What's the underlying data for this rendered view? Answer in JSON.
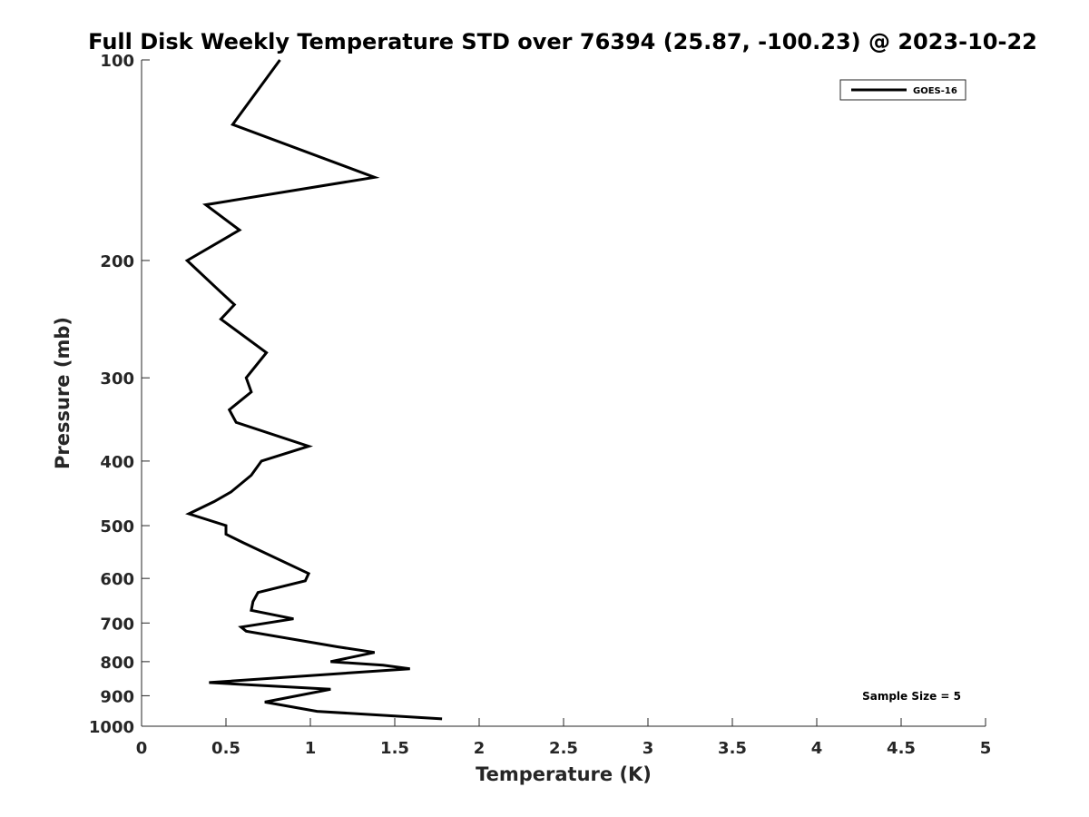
{
  "chart_data": {
    "type": "line",
    "title": "Full Disk Weekly Temperature STD over 76394 (25.87, -100.23) @ 2023-10-22",
    "xlabel": "Temperature (K)",
    "ylabel": "Pressure (mb)",
    "xlim": [
      0,
      5
    ],
    "ylim": [
      100,
      1000
    ],
    "yscale": "log",
    "y_reversed": true,
    "grid": false,
    "legend_position": "top-right",
    "x_ticks": [
      0,
      0.5,
      1,
      1.5,
      2,
      2.5,
      3,
      3.5,
      4,
      4.5,
      5
    ],
    "x_tick_labels": [
      "0",
      "0.5",
      "1",
      "1.5",
      "2",
      "2.5",
      "3",
      "3.5",
      "4",
      "4.5",
      "5"
    ],
    "y_ticks": [
      100,
      200,
      300,
      400,
      500,
      600,
      700,
      800,
      900,
      1000
    ],
    "y_tick_labels": [
      "100",
      "200",
      "300",
      "400",
      "500",
      "600",
      "700",
      "800",
      "900",
      "1000"
    ],
    "annotation": "Sample Size = 5",
    "series": [
      {
        "name": "GOES-16",
        "color": "#000000",
        "x": [
          0.82,
          0.54,
          1.38,
          0.38,
          0.58,
          0.27,
          0.46,
          0.55,
          0.47,
          0.74,
          0.62,
          0.65,
          0.52,
          0.56,
          0.99,
          0.71,
          0.65,
          0.53,
          0.43,
          0.28,
          0.5,
          0.5,
          0.6,
          0.99,
          0.97,
          0.69,
          0.66,
          0.65,
          0.9,
          0.59,
          0.62,
          1.16,
          1.38,
          1.12,
          1.43,
          1.59,
          0.4,
          1.12,
          0.73,
          1.04,
          1.78
        ],
        "y": [
          100,
          125,
          150,
          165,
          180,
          200,
          222,
          233,
          245,
          275,
          300,
          315,
          335,
          350,
          380,
          400,
          420,
          445,
          460,
          480,
          500,
          515,
          530,
          590,
          605,
          630,
          650,
          670,
          690,
          710,
          720,
          760,
          775,
          800,
          810,
          820,
          860,
          880,
          920,
          950,
          975
        ]
      }
    ]
  }
}
